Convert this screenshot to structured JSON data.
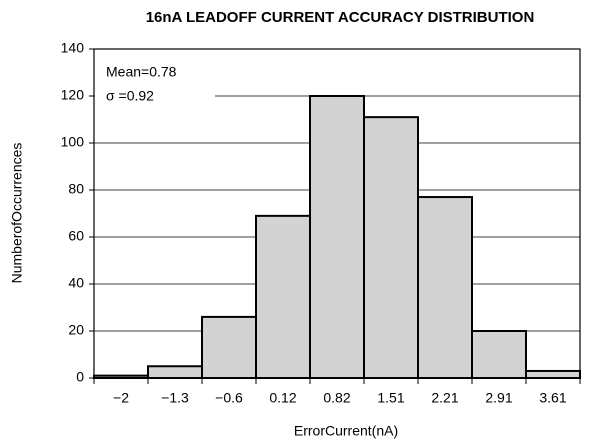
{
  "chart_data": {
    "type": "bar",
    "title": "16nA LEADOFF CURRENT ACCURACY DISTRIBUTION",
    "x_label": "ErrorCurrent(nA)",
    "y_label": "NumberofOccurrences",
    "annotations": [
      "Mean=0.78",
      "σ =0.92"
    ],
    "categories": [
      "−2",
      "−1.3",
      "−0.6",
      "0.12",
      "0.82",
      "1.51",
      "2.21",
      "2.91",
      "3.61"
    ],
    "values": [
      1,
      5,
      26,
      69,
      120,
      111,
      77,
      20,
      3
    ],
    "color": "#d3d3d3",
    "ylim": [
      0,
      140
    ],
    "yticks": [
      0,
      20,
      40,
      60,
      80,
      100,
      120,
      140
    ],
    "grid": true
  }
}
